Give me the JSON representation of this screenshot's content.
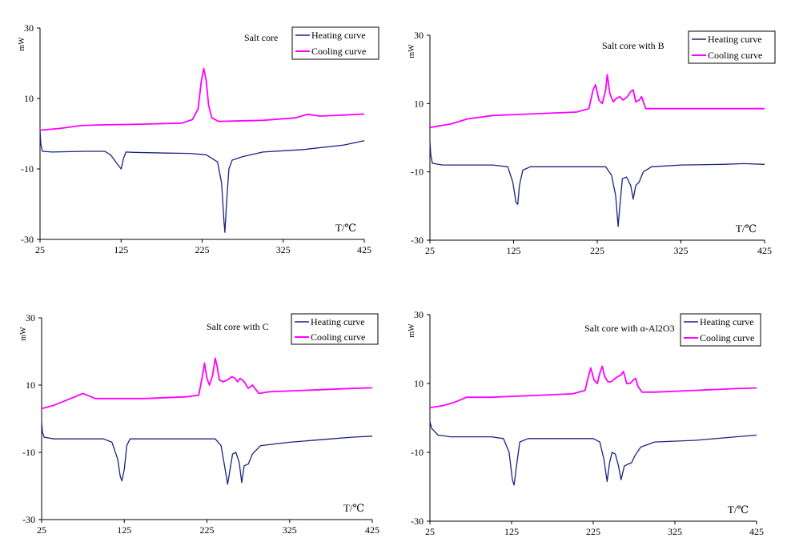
{
  "chart_data": [
    {
      "type": "line",
      "title": "Salt core",
      "ylabel": "mW",
      "xlabel": "T/℃",
      "x_ticks": [
        25,
        125,
        225,
        325,
        425
      ],
      "y_ticks": [
        30,
        10,
        -10,
        -30
      ],
      "xlim": [
        25,
        425
      ],
      "ylim": [
        -30,
        30
      ],
      "legend": "top-right",
      "series": [
        {
          "name": "Heating curve",
          "color": "#1a237e",
          "points": [
            [
              25,
              1
            ],
            [
              26,
              -3
            ],
            [
              28,
              -5
            ],
            [
              40,
              -5.2
            ],
            [
              80,
              -5
            ],
            [
              105,
              -5
            ],
            [
              112,
              -6
            ],
            [
              120,
              -8.5
            ],
            [
              125,
              -10
            ],
            [
              128,
              -7
            ],
            [
              131,
              -5.2
            ],
            [
              140,
              -5.3
            ],
            [
              180,
              -5.5
            ],
            [
              210,
              -5.6
            ],
            [
              230,
              -6
            ],
            [
              244,
              -8
            ],
            [
              249,
              -14
            ],
            [
              252,
              -25
            ],
            [
              253,
              -28
            ],
            [
              255,
              -20
            ],
            [
              258,
              -10
            ],
            [
              262,
              -7.5
            ],
            [
              275,
              -6.5
            ],
            [
              300,
              -5.2
            ],
            [
              350,
              -4.5
            ],
            [
              400,
              -3.2
            ],
            [
              425,
              -2
            ]
          ]
        },
        {
          "name": "Cooling curve",
          "color": "#ff00ff",
          "points": [
            [
              25,
              1
            ],
            [
              50,
              1.5
            ],
            [
              75,
              2.3
            ],
            [
              100,
              2.5
            ],
            [
              150,
              2.7
            ],
            [
              200,
              3
            ],
            [
              213,
              4
            ],
            [
              220,
              7
            ],
            [
              224,
              15
            ],
            [
              227,
              18.5
            ],
            [
              230,
              15
            ],
            [
              233,
              8
            ],
            [
              237,
              4.5
            ],
            [
              245,
              3.5
            ],
            [
              300,
              3.8
            ],
            [
              340,
              4.5
            ],
            [
              355,
              5.5
            ],
            [
              370,
              5
            ],
            [
              400,
              5.3
            ],
            [
              425,
              5.6
            ]
          ]
        }
      ]
    },
    {
      "type": "line",
      "title": "Salt core with B",
      "ylabel": "mW",
      "xlabel": "T/℃",
      "x_ticks": [
        25,
        125,
        225,
        325,
        425
      ],
      "y_ticks": [
        30,
        10,
        -10,
        -30
      ],
      "xlim": [
        25,
        425
      ],
      "ylim": [
        -30,
        30
      ],
      "legend": "top-right",
      "series": [
        {
          "name": "Heating curve",
          "color": "#1a237e",
          "points": [
            [
              25,
              -1
            ],
            [
              26,
              -5
            ],
            [
              28,
              -7.5
            ],
            [
              40,
              -8
            ],
            [
              100,
              -8
            ],
            [
              118,
              -8.5
            ],
            [
              124,
              -13
            ],
            [
              128,
              -19
            ],
            [
              130,
              -19.5
            ],
            [
              132,
              -14
            ],
            [
              136,
              -9.5
            ],
            [
              145,
              -8.5
            ],
            [
              200,
              -8.5
            ],
            [
              235,
              -8.5
            ],
            [
              242,
              -11
            ],
            [
              247,
              -17
            ],
            [
              250,
              -26
            ],
            [
              252,
              -20
            ],
            [
              255,
              -12
            ],
            [
              260,
              -11.5
            ],
            [
              265,
              -14
            ],
            [
              268,
              -18
            ],
            [
              271,
              -14
            ],
            [
              275,
              -13
            ],
            [
              280,
              -10
            ],
            [
              290,
              -8.5
            ],
            [
              325,
              -8
            ],
            [
              375,
              -7.8
            ],
            [
              400,
              -7.6
            ],
            [
              425,
              -7.8
            ]
          ]
        },
        {
          "name": "Cooling curve",
          "color": "#ff00ff",
          "points": [
            [
              25,
              3
            ],
            [
              50,
              4
            ],
            [
              70,
              5.5
            ],
            [
              100,
              6.5
            ],
            [
              150,
              7
            ],
            [
              200,
              7.5
            ],
            [
              215,
              8.5
            ],
            [
              220,
              14
            ],
            [
              223,
              15.5
            ],
            [
              227,
              11
            ],
            [
              231,
              10
            ],
            [
              235,
              14
            ],
            [
              237,
              18.5
            ],
            [
              240,
              13
            ],
            [
              244,
              10.5
            ],
            [
              248,
              11.5
            ],
            [
              252,
              12
            ],
            [
              256,
              11
            ],
            [
              261,
              12
            ],
            [
              265,
              13.5
            ],
            [
              268,
              14
            ],
            [
              271,
              10.5
            ],
            [
              275,
              11
            ],
            [
              278,
              12
            ],
            [
              283,
              8.5
            ],
            [
              300,
              8.5
            ],
            [
              350,
              8.5
            ],
            [
              400,
              8.5
            ],
            [
              425,
              8.5
            ]
          ]
        }
      ]
    },
    {
      "type": "line",
      "title": "Salt core with C",
      "ylabel": "mW",
      "xlabel": "T/℃",
      "x_ticks": [
        25,
        125,
        225,
        325,
        425
      ],
      "y_ticks": [
        30,
        10,
        -10,
        -30
      ],
      "xlim": [
        25,
        425
      ],
      "ylim": [
        -30,
        30
      ],
      "legend": "top-right",
      "series": [
        {
          "name": "Heating curve",
          "color": "#1a237e",
          "points": [
            [
              25,
              -1
            ],
            [
              26,
              -4
            ],
            [
              28,
              -5.5
            ],
            [
              40,
              -6
            ],
            [
              100,
              -6
            ],
            [
              110,
              -7
            ],
            [
              117,
              -12
            ],
            [
              120,
              -17
            ],
            [
              122,
              -18.5
            ],
            [
              125,
              -15
            ],
            [
              128,
              -8
            ],
            [
              132,
              -6
            ],
            [
              150,
              -6
            ],
            [
              200,
              -6
            ],
            [
              235,
              -6
            ],
            [
              242,
              -8
            ],
            [
              247,
              -15
            ],
            [
              250,
              -19.5
            ],
            [
              253,
              -15
            ],
            [
              256,
              -10.5
            ],
            [
              260,
              -10
            ],
            [
              264,
              -13
            ],
            [
              267,
              -19
            ],
            [
              270,
              -14
            ],
            [
              275,
              -13.5
            ],
            [
              280,
              -10.5
            ],
            [
              290,
              -8
            ],
            [
              325,
              -7
            ],
            [
              375,
              -6
            ],
            [
              400,
              -5.5
            ],
            [
              425,
              -5.2
            ]
          ]
        },
        {
          "name": "Cooling curve",
          "color": "#ff00ff",
          "points": [
            [
              25,
              3
            ],
            [
              40,
              4
            ],
            [
              60,
              6
            ],
            [
              75,
              7.5
            ],
            [
              80,
              7
            ],
            [
              90,
              6
            ],
            [
              100,
              6
            ],
            [
              150,
              6
            ],
            [
              200,
              6.5
            ],
            [
              215,
              7
            ],
            [
              219,
              12
            ],
            [
              222,
              16.5
            ],
            [
              225,
              12
            ],
            [
              228,
              10
            ],
            [
              232,
              13
            ],
            [
              235,
              18
            ],
            [
              237,
              16
            ],
            [
              240,
              11.5
            ],
            [
              245,
              11
            ],
            [
              250,
              11.5
            ],
            [
              255,
              12.5
            ],
            [
              259,
              12
            ],
            [
              262,
              11
            ],
            [
              265,
              12
            ],
            [
              270,
              11
            ],
            [
              275,
              9
            ],
            [
              280,
              10
            ],
            [
              283,
              9
            ],
            [
              288,
              7.5
            ],
            [
              300,
              8
            ],
            [
              350,
              8.5
            ],
            [
              400,
              9
            ],
            [
              425,
              9.2
            ]
          ]
        }
      ]
    },
    {
      "type": "line",
      "title": "Salt core with α-Al2O3",
      "ylabel": "mW",
      "xlabel": "T/℃",
      "x_ticks": [
        25,
        125,
        225,
        325,
        425
      ],
      "y_ticks": [
        30,
        10,
        -10,
        -30
      ],
      "xlim": [
        25,
        425
      ],
      "ylim": [
        -30,
        30
      ],
      "legend": "top-right",
      "series": [
        {
          "name": "Heating curve",
          "color": "#1a237e",
          "points": [
            [
              25,
              -1
            ],
            [
              27,
              -3
            ],
            [
              35,
              -5
            ],
            [
              50,
              -5.5
            ],
            [
              100,
              -5.5
            ],
            [
              115,
              -6
            ],
            [
              122,
              -10
            ],
            [
              126,
              -18
            ],
            [
              128,
              -19.5
            ],
            [
              131,
              -14
            ],
            [
              135,
              -7
            ],
            [
              145,
              -6
            ],
            [
              200,
              -6
            ],
            [
              225,
              -6
            ],
            [
              233,
              -7
            ],
            [
              238,
              -12
            ],
            [
              242,
              -18.5
            ],
            [
              245,
              -13
            ],
            [
              248,
              -10
            ],
            [
              252,
              -10.5
            ],
            [
              256,
              -14
            ],
            [
              259,
              -18
            ],
            [
              263,
              -14
            ],
            [
              267,
              -13.5
            ],
            [
              272,
              -13
            ],
            [
              276,
              -11
            ],
            [
              283,
              -8.5
            ],
            [
              300,
              -7
            ],
            [
              350,
              -6.5
            ],
            [
              400,
              -5.5
            ],
            [
              425,
              -5
            ]
          ]
        },
        {
          "name": "Cooling curve",
          "color": "#ff00ff",
          "points": [
            [
              25,
              3
            ],
            [
              40,
              3.5
            ],
            [
              55,
              4.5
            ],
            [
              70,
              6
            ],
            [
              100,
              6
            ],
            [
              150,
              6.5
            ],
            [
              200,
              7
            ],
            [
              215,
              8
            ],
            [
              219,
              12
            ],
            [
              222,
              14.5
            ],
            [
              226,
              11
            ],
            [
              230,
              10
            ],
            [
              233,
              13
            ],
            [
              236,
              15
            ],
            [
              239,
              12
            ],
            [
              243,
              10.5
            ],
            [
              247,
              10.5
            ],
            [
              252,
              11.5
            ],
            [
              255,
              12
            ],
            [
              259,
              12.5
            ],
            [
              262,
              13.5
            ],
            [
              266,
              10
            ],
            [
              270,
              10
            ],
            [
              274,
              11
            ],
            [
              277,
              11.5
            ],
            [
              280,
              9
            ],
            [
              285,
              7.5
            ],
            [
              300,
              7.5
            ],
            [
              350,
              8
            ],
            [
              400,
              8.5
            ],
            [
              425,
              8.7
            ]
          ]
        }
      ]
    }
  ]
}
